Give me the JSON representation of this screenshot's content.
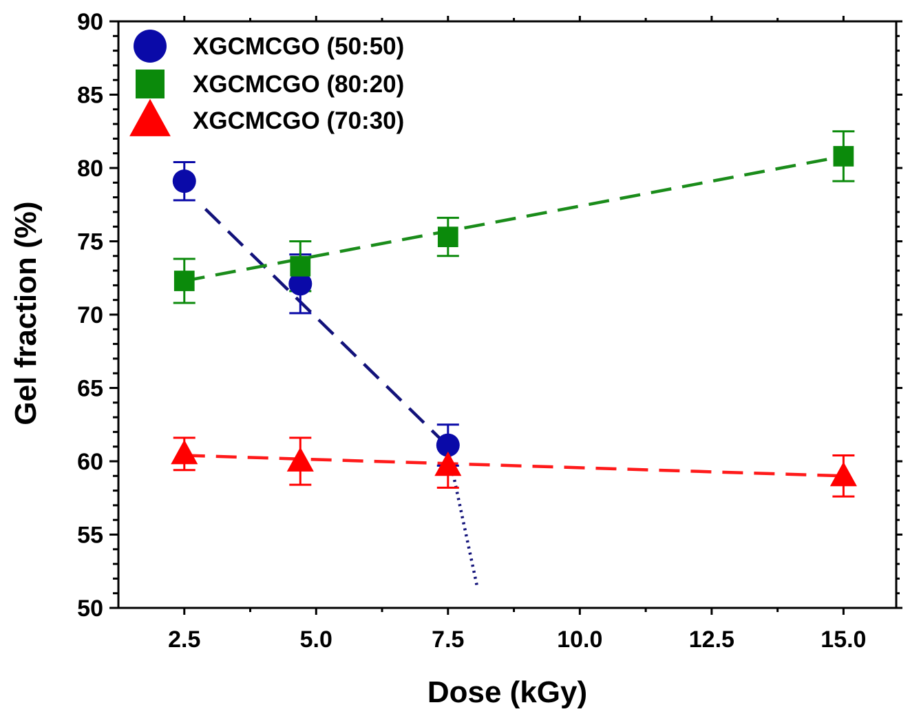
{
  "chart_data": {
    "type": "scatter",
    "title": "",
    "xlabel": "Dose (kGy)",
    "ylabel": "Gel fraction (%)",
    "xlim": [
      1.25,
      16.0
    ],
    "ylim": [
      50,
      90
    ],
    "x_ticks": [
      "2.5",
      "5.0",
      "7.5",
      "10.0",
      "12.5",
      "15.0"
    ],
    "y_ticks": [
      "50",
      "55",
      "60",
      "65",
      "70",
      "75",
      "80",
      "85",
      "90"
    ],
    "legend_position": "top-left",
    "series": [
      {
        "name": "XGCMCGO (50:50)",
        "marker": "circle",
        "color": "#0A0AA8",
        "line_color": "#12127A",
        "x": [
          2.5,
          4.7,
          7.5
        ],
        "y": [
          79.1,
          72.1,
          61.1
        ],
        "err": [
          1.3,
          2.0,
          1.4
        ],
        "fit_dashed": {
          "x": [
            2.9,
            7.45
          ],
          "y": [
            77.2,
            61.2
          ]
        },
        "fit_dotted": {
          "x": [
            7.5,
            8.05
          ],
          "y": [
            60.8,
            51.5
          ]
        }
      },
      {
        "name": "XGCMCGO (80:20)",
        "marker": "square",
        "color": "#0B8A0B",
        "line_color": "#1A8C1A",
        "x": [
          2.5,
          4.7,
          7.5,
          15.0
        ],
        "y": [
          72.3,
          73.3,
          75.3,
          80.8
        ],
        "err": [
          1.5,
          1.7,
          1.3,
          1.7
        ],
        "fit_dashed": {
          "x": [
            2.5,
            15.0
          ],
          "y": [
            72.3,
            80.8
          ]
        }
      },
      {
        "name": "XGCMCGO (70:30)",
        "marker": "triangle",
        "color": "#FF0000",
        "line_color": "#FF1A1A",
        "x": [
          2.5,
          4.7,
          7.5,
          15.0
        ],
        "y": [
          60.5,
          60.0,
          59.7,
          59.0
        ],
        "err": [
          1.1,
          1.6,
          1.5,
          1.4
        ],
        "fit_dashed": {
          "x": [
            2.5,
            15.0
          ],
          "y": [
            60.4,
            59.0
          ]
        }
      }
    ]
  }
}
